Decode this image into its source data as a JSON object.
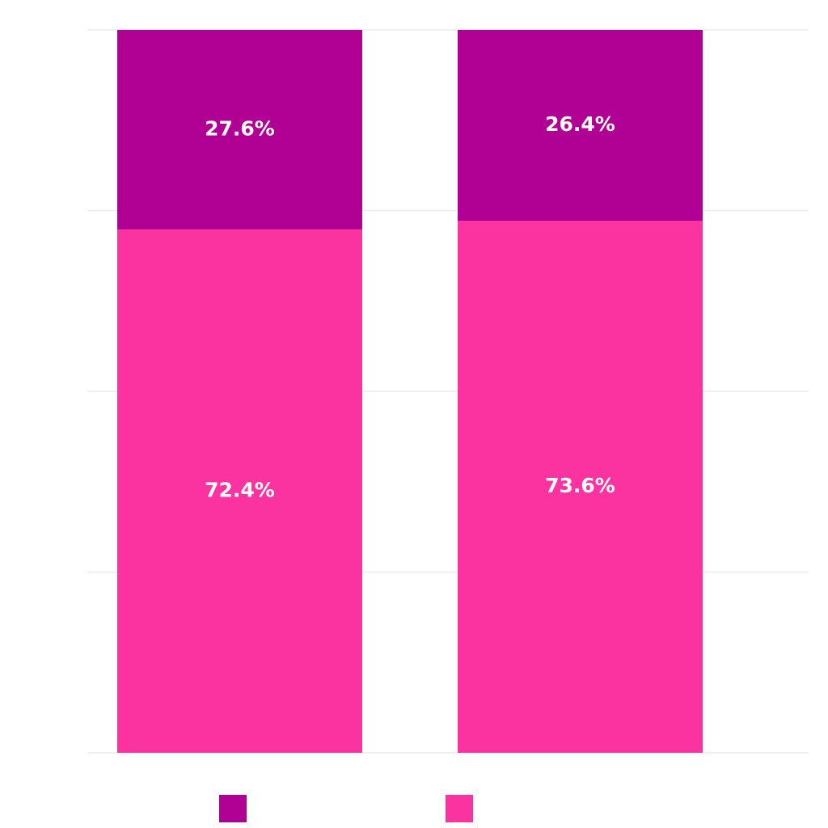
{
  "chart_data": {
    "type": "stacked_bar",
    "categories": [
      null,
      null
    ],
    "series": [
      {
        "color": "#b10094",
        "values": [
          27.6,
          26.4
        ],
        "value_labels": [
          "27.6%",
          "26.4%"
        ]
      },
      {
        "color": "#fb33a1",
        "values": [
          72.4,
          73.6
        ],
        "value_labels": [
          "72.4%",
          "73.6%"
        ]
      }
    ],
    "ylim": [
      0,
      100
    ],
    "yticks": [
      0,
      25,
      50,
      75,
      100
    ],
    "grid": true,
    "legend": "bottom"
  }
}
